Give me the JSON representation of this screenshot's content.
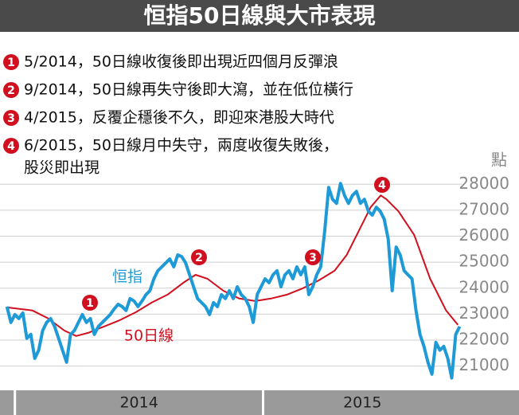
{
  "chart_data": {
    "type": "line",
    "title": "恒指50日線與大市表現",
    "notes": [
      {
        "marker": "1",
        "lines": [
          "5/2014，50日線收復後即出現近四個月反彈浪"
        ]
      },
      {
        "marker": "2",
        "lines": [
          "9/2014，50日線再失守後即大瀉，並在低位橫行"
        ]
      },
      {
        "marker": "3",
        "lines": [
          "4/2015，反覆企穩後不久，即迎來港股大時代"
        ]
      },
      {
        "marker": "4",
        "lines": [
          "6/2015，50日線月中失守，兩度收復失敗後，",
          "股災即出現"
        ]
      }
    ],
    "y_unit": "點",
    "xlim": [
      2013.94,
      2015.8
    ],
    "xticks": [
      {
        "value": 2014,
        "label": "2014"
      },
      {
        "value": 2015,
        "label": "2015"
      }
    ],
    "ylim": [
      20100,
      28500
    ],
    "yticks": [
      21000,
      22000,
      23000,
      24000,
      25000,
      26000,
      27000,
      28000
    ],
    "grid": true,
    "series": [
      {
        "name": "恒指",
        "color": "#1e9ad6",
        "x": [
          2013.968,
          2013.984,
          2014,
          2014.016,
          2014.032,
          2014.048,
          2014.064,
          2014.08,
          2014.096,
          2014.112,
          2014.128,
          2014.144,
          2014.16,
          2014.176,
          2014.192,
          2014.208,
          2014.224,
          2014.24,
          2014.256,
          2014.272,
          2014.288,
          2014.304,
          2014.32,
          2014.336,
          2014.352,
          2014.368,
          2014.384,
          2014.4,
          2014.416,
          2014.432,
          2014.448,
          2014.464,
          2014.48,
          2014.496,
          2014.512,
          2014.528,
          2014.544,
          2014.56,
          2014.576,
          2014.592,
          2014.608,
          2014.624,
          2014.64,
          2014.656,
          2014.672,
          2014.688,
          2014.704,
          2014.72,
          2014.736,
          2014.752,
          2014.768,
          2014.784,
          2014.8,
          2014.816,
          2014.832,
          2014.848,
          2014.864,
          2014.88,
          2014.896,
          2014.912,
          2014.928,
          2014.944,
          2014.96,
          2014.976,
          2014.992,
          2015.008,
          2015.024,
          2015.04,
          2015.056,
          2015.072,
          2015.088,
          2015.104,
          2015.12,
          2015.136,
          2015.152,
          2015.168,
          2015.184,
          2015.2,
          2015.216,
          2015.232,
          2015.248,
          2015.264,
          2015.28,
          2015.296,
          2015.312,
          2015.328,
          2015.344,
          2015.36,
          2015.376,
          2015.392,
          2015.408,
          2015.424,
          2015.44,
          2015.456,
          2015.472,
          2015.488,
          2015.504,
          2015.52,
          2015.536,
          2015.552,
          2015.568,
          2015.584,
          2015.6,
          2015.616,
          2015.632,
          2015.648,
          2015.664,
          2015.68,
          2015.696,
          2015.712,
          2015.728,
          2015.744,
          2015.76,
          2015.776,
          2015.792
        ],
        "values": [
          23290,
          22680,
          22985,
          22830,
          23045,
          22070,
          22220,
          21300,
          21610,
          22370,
          22680,
          22830,
          22525,
          22070,
          21610,
          21150,
          22220,
          22370,
          22680,
          22985,
          22680,
          22830,
          22220,
          22525,
          22680,
          22830,
          22985,
          23200,
          23380,
          23290,
          23140,
          23600,
          23505,
          23290,
          23505,
          23750,
          23900,
          24360,
          24670,
          24820,
          24970,
          25125,
          24820,
          25280,
          25215,
          24970,
          24515,
          24055,
          23600,
          23445,
          23290,
          22985,
          23445,
          23290,
          23750,
          23600,
          23900,
          23600,
          24055,
          23750,
          23600,
          23290,
          22680,
          23750,
          24055,
          24360,
          24210,
          24515,
          24670,
          24055,
          24515,
          24670,
          24360,
          24820,
          24515,
          24820,
          23750,
          24055,
          24515,
          24820,
          26195,
          27880,
          27420,
          27265,
          28030,
          27570,
          27265,
          27570,
          27725,
          27265,
          27420,
          26960,
          26810,
          27115,
          26960,
          26655,
          25890,
          23900,
          25585,
          25280,
          24670,
          24515,
          24360,
          23140,
          22220,
          21760,
          21150,
          20690,
          21915,
          21610,
          21760,
          21300,
          20540,
          22220,
          22525
        ]
      },
      {
        "name": "50日線",
        "color": "#d0101e",
        "x": [
          2013.968,
          2014.071,
          2014.135,
          2014.199,
          2014.247,
          2014.295,
          2014.359,
          2014.423,
          2014.487,
          2014.551,
          2014.615,
          2014.679,
          2014.728,
          2014.776,
          2014.84,
          2014.904,
          2014.968,
          2015.032,
          2015.096,
          2015.16,
          2015.224,
          2015.288,
          2015.337,
          2015.385,
          2015.433,
          2015.474,
          2015.497,
          2015.545,
          2015.609,
          2015.673,
          2015.737,
          2015.785
        ],
        "values": [
          23260,
          23140,
          22830,
          22370,
          22160,
          22280,
          22525,
          22770,
          23075,
          23445,
          23750,
          24210,
          24515,
          24360,
          23900,
          23600,
          23505,
          23600,
          23750,
          23995,
          24300,
          24670,
          25280,
          26195,
          27115,
          27570,
          27420,
          26960,
          26045,
          24360,
          23140,
          22585
        ]
      }
    ]
  }
}
